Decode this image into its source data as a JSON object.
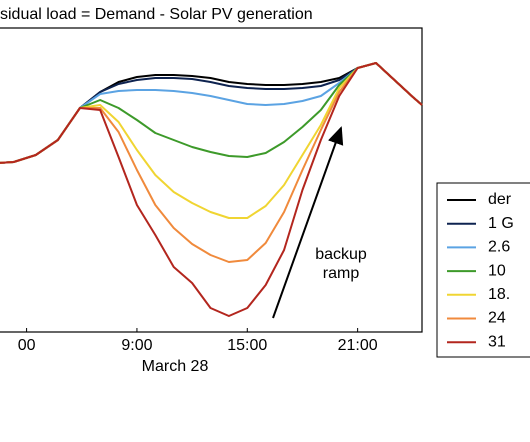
{
  "chart_data": {
    "type": "line",
    "title": "sidual load = Demand - Solar PV generation",
    "xlabel": "March 28",
    "annotation": [
      "backup",
      "ramp"
    ],
    "x": [
      1.5,
      2.3,
      3.5,
      4.7,
      5.9,
      7,
      8,
      9,
      10,
      11,
      12,
      13,
      14,
      15,
      16,
      17,
      18,
      19,
      20,
      21,
      22,
      23,
      24,
      24.5
    ],
    "xlim": [
      1.5,
      24.5
    ],
    "xticks": [
      {
        "value": 3,
        "label": "00"
      },
      {
        "value": 9,
        "label": "9:00"
      },
      {
        "value": 15,
        "label": "15:00"
      },
      {
        "value": 21,
        "label": "21:00"
      }
    ],
    "ylim": [
      0,
      304
    ],
    "legend": "right",
    "series": [
      {
        "name": "der",
        "color": "#000000",
        "values": [
          169,
          170,
          177,
          192,
          224,
          240,
          250,
          255,
          257,
          257,
          256,
          254,
          250,
          248,
          247,
          247,
          248,
          250,
          254,
          264,
          269,
          252,
          235,
          227
        ]
      },
      {
        "name": "1 G",
        "color": "#0e2350",
        "values": [
          169,
          170,
          177,
          192,
          224,
          240,
          248,
          252,
          254,
          254,
          253,
          250,
          246,
          244,
          243,
          243,
          244,
          246,
          252,
          264,
          269,
          252,
          235,
          227
        ]
      },
      {
        "name": "2.6",
        "color": "#5ba3e3",
        "values": [
          169,
          170,
          177,
          192,
          224,
          238,
          241,
          242,
          242,
          241,
          239,
          236,
          232,
          228,
          227,
          228,
          231,
          236,
          249,
          264,
          269,
          252,
          235,
          227
        ]
      },
      {
        "name": "10",
        "color": "#3d9a2a",
        "values": [
          169,
          170,
          177,
          192,
          224,
          232,
          224,
          212,
          199,
          192,
          185,
          180,
          176,
          175,
          179,
          190,
          205,
          222,
          247,
          264,
          269,
          252,
          235,
          227
        ]
      },
      {
        "name": "18.",
        "color": "#f0d532",
        "values": [
          169,
          170,
          177,
          192,
          224,
          227,
          210,
          182,
          157,
          140,
          129,
          120,
          114,
          114,
          126,
          147,
          177,
          207,
          244,
          264,
          269,
          252,
          235,
          227
        ]
      },
      {
        "name": "24",
        "color": "#f08a3c",
        "values": [
          169,
          170,
          177,
          192,
          224,
          224,
          200,
          162,
          127,
          104,
          88,
          77,
          70,
          72,
          89,
          120,
          162,
          202,
          240,
          264,
          269,
          252,
          235,
          227
        ]
      },
      {
        "name": "31",
        "color": "#b3261e",
        "values": [
          169,
          170,
          177,
          192,
          224,
          222,
          175,
          127,
          97,
          65,
          49,
          24,
          16,
          24,
          47,
          82,
          142,
          192,
          236,
          264,
          269,
          252,
          235,
          227
        ]
      }
    ]
  }
}
